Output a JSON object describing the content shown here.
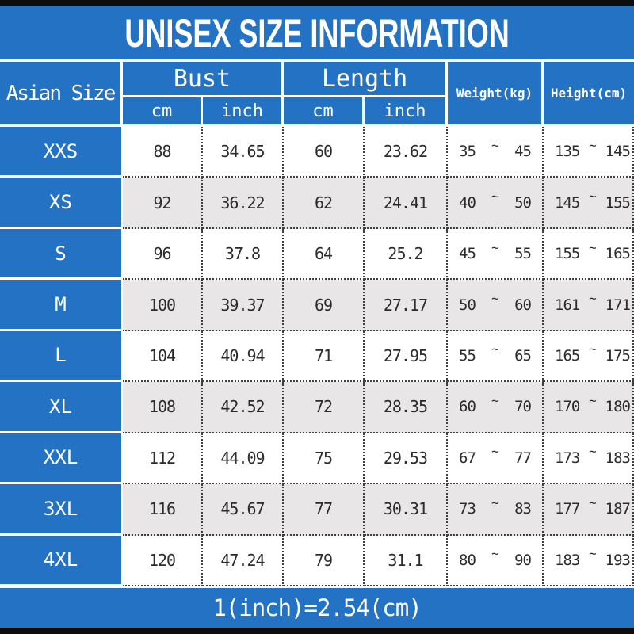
{
  "header": {
    "title": "UNISEX SIZE INFORMATION"
  },
  "chart_data": {
    "type": "table",
    "title": "UNISEX SIZE INFORMATION",
    "tilde": "~",
    "headers": {
      "asian_size": "Asian Size",
      "bust": "Bust",
      "length": "Length",
      "weight": "Weight(kg)",
      "height": "Height(cm)",
      "unit_cm": "cm",
      "unit_inch": "inch"
    },
    "columns": [
      "Asian Size",
      "Bust cm",
      "Bust inch",
      "Length cm",
      "Length inch",
      "Weight(kg)",
      "Height(cm)"
    ],
    "rows": [
      {
        "size": "XXS",
        "bust_cm": "88",
        "bust_inch": "34.65",
        "length_cm": "60",
        "length_inch": "23.62",
        "weight_min": "35",
        "weight_max": "45",
        "height_min": "135",
        "height_max": "145"
      },
      {
        "size": "XS",
        "bust_cm": "92",
        "bust_inch": "36.22",
        "length_cm": "62",
        "length_inch": "24.41",
        "weight_min": "40",
        "weight_max": "50",
        "height_min": "145",
        "height_max": "155"
      },
      {
        "size": "S",
        "bust_cm": "96",
        "bust_inch": "37.8",
        "length_cm": "64",
        "length_inch": "25.2",
        "weight_min": "45",
        "weight_max": "55",
        "height_min": "155",
        "height_max": "165"
      },
      {
        "size": "M",
        "bust_cm": "100",
        "bust_inch": "39.37",
        "length_cm": "69",
        "length_inch": "27.17",
        "weight_min": "50",
        "weight_max": "60",
        "height_min": "161",
        "height_max": "171"
      },
      {
        "size": "L",
        "bust_cm": "104",
        "bust_inch": "40.94",
        "length_cm": "71",
        "length_inch": "27.95",
        "weight_min": "55",
        "weight_max": "65",
        "height_min": "165",
        "height_max": "175"
      },
      {
        "size": "XL",
        "bust_cm": "108",
        "bust_inch": "42.52",
        "length_cm": "72",
        "length_inch": "28.35",
        "weight_min": "60",
        "weight_max": "70",
        "height_min": "170",
        "height_max": "180"
      },
      {
        "size": "XXL",
        "bust_cm": "112",
        "bust_inch": "44.09",
        "length_cm": "75",
        "length_inch": "29.53",
        "weight_min": "67",
        "weight_max": "77",
        "height_min": "173",
        "height_max": "183"
      },
      {
        "size": "3XL",
        "bust_cm": "116",
        "bust_inch": "45.67",
        "length_cm": "77",
        "length_inch": "30.31",
        "weight_min": "73",
        "weight_max": "83",
        "height_min": "177",
        "height_max": "187"
      },
      {
        "size": "4XL",
        "bust_cm": "120",
        "bust_inch": "47.24",
        "length_cm": "79",
        "length_inch": "31.1",
        "weight_min": "80",
        "weight_max": "90",
        "height_min": "183",
        "height_max": "193"
      }
    ],
    "note": "1(inch)=2.54(cm)"
  },
  "footer": {
    "note": "1(inch)=2.54(cm)"
  },
  "colors": {
    "accent_blue": "#2472c4",
    "alt_row_gray": "#e8e6e6",
    "edge_bar_black": "#0d0d0d",
    "dotted_border": "#3f3f3f"
  }
}
